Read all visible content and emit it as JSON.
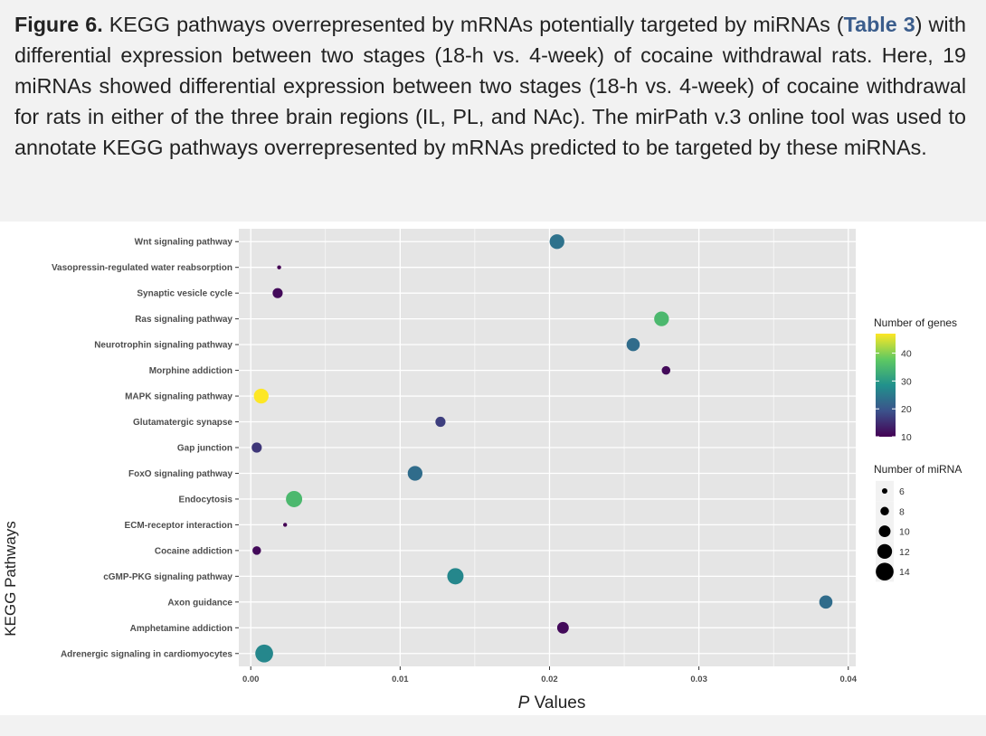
{
  "caption": {
    "figure_label": "Figure 6.",
    "text_before_link": " KEGG pathways overrepresented by mRNAs potentially targeted by miRNAs (",
    "link_text": "Table 3",
    "text_after_link": ") with differential expression between two stages (18-h vs. 4-week) of cocaine withdrawal rats. Here, 19 miRNAs showed differential expression between two stages (18-h vs. 4-week) of cocaine withdrawal for rats in either of the three brain regions (IL, PL, and NAc). The mirPath v.3 online tool was used to annotate KEGG pathways overrepresented by mRNAs predicted to be targeted by these miRNAs."
  },
  "colors": {
    "panel_bg": "#e5e5e5",
    "grid": "#ffffff",
    "viridis": [
      "#440154",
      "#3b528b",
      "#21918c",
      "#5ec962",
      "#fde725"
    ]
  },
  "chart_data": {
    "type": "scatter",
    "title": "",
    "xlabel_italic": "P",
    "xlabel_rest": " Values",
    "ylabel": "KEGG Pathways",
    "xlim": [
      -0.0008,
      0.0405
    ],
    "x_ticks": [
      0.0,
      0.01,
      0.02,
      0.03,
      0.04
    ],
    "x_tick_labels": [
      "0.00",
      "0.01",
      "0.02",
      "0.03",
      "0.04"
    ],
    "points": [
      {
        "pathway": "Wnt signaling pathway",
        "p": 0.0205,
        "genes": 24,
        "mirna": 12
      },
      {
        "pathway": "Vasopressin-regulated water reabsorption",
        "p": 0.0019,
        "genes": 10,
        "mirna": 5
      },
      {
        "pathway": "Synaptic vesicle cycle",
        "p": 0.0018,
        "genes": 11,
        "mirna": 9
      },
      {
        "pathway": "Ras signaling pathway",
        "p": 0.0275,
        "genes": 35,
        "mirna": 12
      },
      {
        "pathway": "Neurotrophin signaling pathway",
        "p": 0.0256,
        "genes": 23,
        "mirna": 11
      },
      {
        "pathway": "Morphine addiction",
        "p": 0.0278,
        "genes": 11,
        "mirna": 8
      },
      {
        "pathway": "MAPK signaling pathway",
        "p": 0.0007,
        "genes": 47,
        "mirna": 12
      },
      {
        "pathway": "Glutamatergic synapse",
        "p": 0.0127,
        "genes": 17,
        "mirna": 9
      },
      {
        "pathway": "Gap junction",
        "p": 0.0004,
        "genes": 16,
        "mirna": 9
      },
      {
        "pathway": "FoxO signaling pathway",
        "p": 0.011,
        "genes": 23,
        "mirna": 12
      },
      {
        "pathway": "Endocytosis",
        "p": 0.0029,
        "genes": 35,
        "mirna": 13
      },
      {
        "pathway": "ECM-receptor interaction",
        "p": 0.0023,
        "genes": 10,
        "mirna": 5
      },
      {
        "pathway": "Cocaine addiction",
        "p": 0.0004,
        "genes": 11,
        "mirna": 8
      },
      {
        "pathway": "cGMP-PKG signaling pathway",
        "p": 0.0137,
        "genes": 27,
        "mirna": 13
      },
      {
        "pathway": "Axon guidance",
        "p": 0.0385,
        "genes": 23,
        "mirna": 11
      },
      {
        "pathway": "Amphetamine addiction",
        "p": 0.0209,
        "genes": 11,
        "mirna": 10
      },
      {
        "pathway": "Adrenergic signaling in cardiomyocytes",
        "p": 0.0009,
        "genes": 27,
        "mirna": 14
      }
    ],
    "legend_color": {
      "title": "Number of genes",
      "range": [
        10,
        47
      ],
      "ticks": [
        10,
        20,
        30,
        40
      ],
      "tick_labels": [
        "10",
        "20",
        "30",
        "40"
      ]
    },
    "legend_size": {
      "title": "Number of miRNA",
      "values": [
        6,
        8,
        10,
        12,
        14
      ],
      "labels": [
        "6",
        "8",
        "10",
        "12",
        "14"
      ]
    }
  }
}
